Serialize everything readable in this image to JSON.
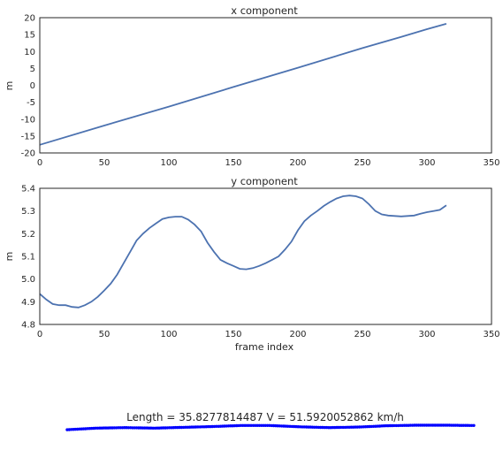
{
  "chart_data": [
    {
      "type": "line",
      "title": "x component",
      "xlabel": "",
      "ylabel": "m",
      "xlim": [
        0,
        350
      ],
      "ylim": [
        -20,
        20
      ],
      "xticks": [
        "0",
        "50",
        "100",
        "150",
        "200",
        "250",
        "300",
        "350"
      ],
      "yticks": [
        "-20",
        "-15",
        "-10",
        "-5",
        "0",
        "5",
        "10",
        "15",
        "20"
      ],
      "grid": false,
      "line_color": "#4c72b0",
      "series": [
        {
          "x": [
            0,
            50,
            100,
            150,
            200,
            250,
            280,
            300,
            315
          ],
          "y": [
            -17.6,
            -11.9,
            -6.3,
            -0.5,
            5.2,
            11.0,
            14.3,
            16.6,
            18.2
          ]
        }
      ]
    },
    {
      "type": "line",
      "title": "y component",
      "xlabel": "frame index",
      "ylabel": "m",
      "xlim": [
        0,
        350
      ],
      "ylim": [
        4.8,
        5.4
      ],
      "xticks": [
        "0",
        "50",
        "100",
        "150",
        "200",
        "250",
        "300",
        "350"
      ],
      "yticks": [
        "4.8",
        "4.9",
        "5.0",
        "5.1",
        "5.2",
        "5.3",
        "5.4"
      ],
      "grid": false,
      "line_color": "#4c72b0",
      "series": [
        {
          "x": [
            0,
            5,
            10,
            15,
            20,
            25,
            30,
            35,
            40,
            45,
            50,
            55,
            60,
            65,
            70,
            75,
            80,
            85,
            90,
            95,
            100,
            105,
            110,
            115,
            120,
            125,
            130,
            135,
            140,
            145,
            150,
            155,
            160,
            165,
            170,
            175,
            180,
            185,
            190,
            195,
            200,
            205,
            210,
            215,
            220,
            225,
            230,
            235,
            240,
            245,
            250,
            255,
            260,
            265,
            270,
            275,
            280,
            285,
            290,
            295,
            300,
            305,
            310,
            315
          ],
          "y": [
            4.935,
            4.91,
            4.89,
            4.885,
            4.885,
            4.877,
            4.875,
            4.885,
            4.9,
            4.922,
            4.95,
            4.98,
            5.02,
            5.07,
            5.12,
            5.17,
            5.2,
            5.225,
            5.245,
            5.265,
            5.272,
            5.275,
            5.275,
            5.262,
            5.24,
            5.21,
            5.16,
            5.12,
            5.085,
            5.07,
            5.058,
            5.045,
            5.043,
            5.048,
            5.058,
            5.07,
            5.085,
            5.1,
            5.13,
            5.165,
            5.215,
            5.255,
            5.28,
            5.3,
            5.322,
            5.34,
            5.355,
            5.365,
            5.368,
            5.365,
            5.355,
            5.33,
            5.3,
            5.285,
            5.28,
            5.278,
            5.276,
            5.278,
            5.28,
            5.288,
            5.295,
            5.3,
            5.305,
            5.325
          ]
        }
      ]
    }
  ],
  "caption": "Length = 35.8277814487 V = 51.5920052862 km/h",
  "trace": {
    "color": "#0000ff",
    "profile": [
      0.15,
      0.45,
      0.55,
      0.45,
      0.6,
      0.75,
      0.95,
      0.95,
      0.7,
      0.55,
      0.65,
      0.9,
      1.0,
      1.0,
      0.95
    ]
  }
}
